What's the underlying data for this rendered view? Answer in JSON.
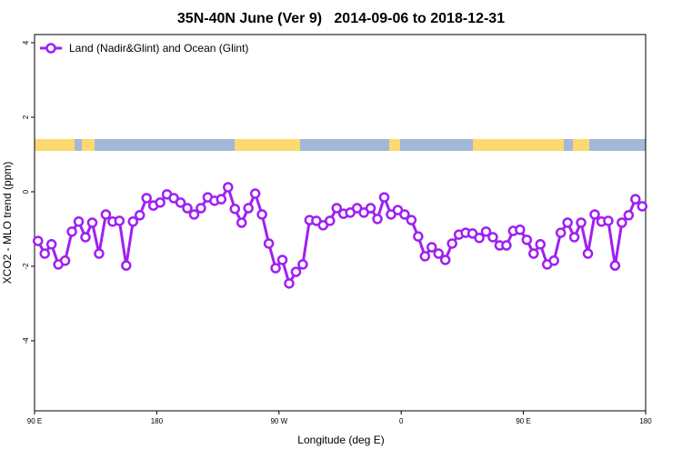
{
  "chart_data": {
    "type": "line",
    "title": "35N-40N June (Ver 9)   2014-09-06 to 2018-12-31",
    "xlabel": "Longitude (deg E)",
    "ylabel": "XCO2 - MLO trend (ppm)",
    "x": [
      92.5,
      97.5,
      102.5,
      107.5,
      112.5,
      117.5,
      122.5,
      127.5,
      132.5,
      137.5,
      142.5,
      147.5,
      152.5,
      157.5,
      162.5,
      167.5,
      172.5,
      177.5,
      182.5,
      187.5,
      192.5,
      197.5,
      202.5,
      207.5,
      212.5,
      217.5,
      222.5,
      227.5,
      232.5,
      237.5,
      242.5,
      247.5,
      252.5,
      257.5,
      262.5,
      267.5,
      272.5,
      277.5,
      282.5,
      287.5,
      292.5,
      297.5,
      302.5,
      307.5,
      312.5,
      317.5,
      322.5,
      327.5,
      332.5,
      337.5,
      342.5,
      347.5,
      352.5,
      357.5,
      362.5,
      367.5,
      372.5,
      377.5,
      382.5,
      387.5,
      392.5,
      397.5,
      402.5,
      407.5,
      412.5,
      417.5,
      422.5,
      427.5,
      432.5,
      437.5,
      442.5,
      447.5,
      452.5,
      457.5,
      462.5,
      467.5,
      472.5,
      477.5,
      482.5,
      487.5,
      492.5,
      497.5,
      502.5,
      507.5,
      512.5,
      517.5,
      522.5,
      527.5,
      532.5,
      537.5
    ],
    "series": [
      {
        "name": "Land (Nadir&Glint) and Ocean (Glint)",
        "color": "#a020f0",
        "values": [
          -1.32,
          -1.66,
          -1.41,
          -1.95,
          -1.85,
          -1.07,
          -0.8,
          -1.22,
          -0.83,
          -1.66,
          -0.61,
          -0.8,
          -0.78,
          -1.98,
          -0.8,
          -0.63,
          -0.17,
          -0.37,
          -0.29,
          -0.07,
          -0.17,
          -0.29,
          -0.44,
          -0.61,
          -0.44,
          -0.15,
          -0.24,
          -0.2,
          0.12,
          -0.46,
          -0.83,
          -0.44,
          -0.05,
          -0.61,
          -1.39,
          -2.05,
          -1.83,
          -2.46,
          -2.15,
          -1.95,
          -0.76,
          -0.78,
          -0.9,
          -0.78,
          -0.44,
          -0.59,
          -0.56,
          -0.44,
          -0.56,
          -0.44,
          -0.73,
          -0.15,
          -0.61,
          -0.49,
          -0.61,
          -0.76,
          -1.2,
          -1.73,
          -1.49,
          -1.66,
          -1.83,
          -1.39,
          -1.15,
          -1.1,
          -1.12,
          -1.24,
          -1.07,
          -1.22,
          -1.44,
          -1.44,
          -1.05,
          -1.02,
          -1.29,
          -1.66,
          -1.41,
          -1.95,
          -1.85,
          -1.1,
          -0.83,
          -1.22,
          -0.83,
          -1.66,
          -0.61,
          -0.8,
          -0.78,
          -1.98,
          -0.83,
          -0.63,
          -0.2,
          -0.39
        ]
      }
    ],
    "xlim": [
      90,
      540
    ],
    "xticks": [
      {
        "value": 90,
        "label": "90 E"
      },
      {
        "value": 180,
        "label": "180"
      },
      {
        "value": 270,
        "label": "90 W"
      },
      {
        "value": 360,
        "label": "0"
      },
      {
        "value": 450,
        "label": "90 E"
      },
      {
        "value": 540,
        "label": "180"
      }
    ],
    "ylim": [
      -5.88,
      4.22
    ],
    "yticks": [
      -4,
      -2,
      0,
      2,
      4
    ],
    "legend": "top-left"
  }
}
